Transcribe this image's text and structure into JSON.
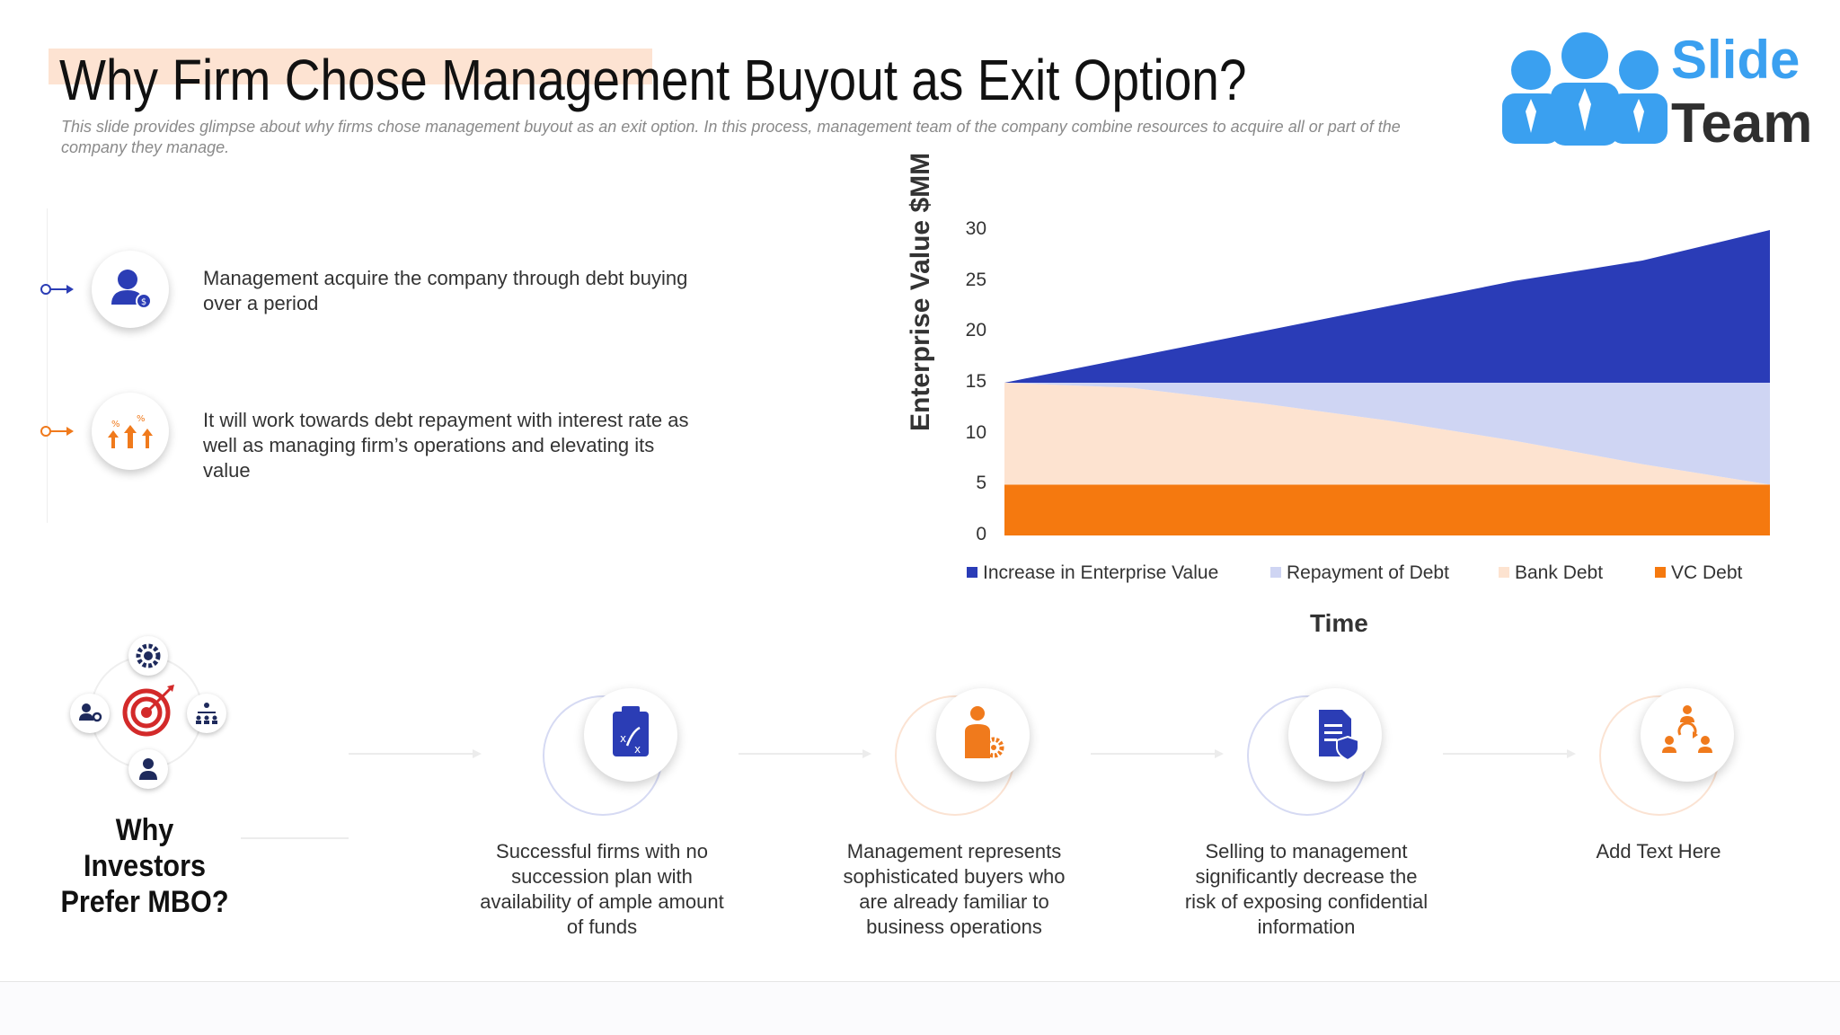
{
  "header": {
    "title": "Why Firm Chose Management Buyout as Exit Option?",
    "subtitle": "This slide provides glimpse about why firms chose management buyout as an exit option. In this process, management team of the company combine resources to acquire all or part of the company they manage."
  },
  "logo": {
    "line1": "Slide",
    "line2": "Team"
  },
  "points": [
    {
      "text": "Management acquire the company through debt buying over a period",
      "icon": "user-dollar-icon",
      "accent": "#2b3db5"
    },
    {
      "text": "It will work towards debt repayment with interest rate as well as managing firm’s operations and elevating its value",
      "icon": "growth-arrows-icon",
      "accent": "#f07a1c"
    }
  ],
  "chart_data": {
    "type": "area",
    "stacked": true,
    "xlabel": "Time",
    "ylabel": "Enterprise Value $MM",
    "ylim": [
      0,
      30
    ],
    "yticks": [
      0,
      5,
      10,
      15,
      20,
      25,
      30
    ],
    "x": [
      0,
      1,
      2,
      3,
      4,
      5,
      6
    ],
    "series": [
      {
        "name": "VC Debt",
        "color": "#f5790f",
        "values": [
          5,
          5,
          5,
          5,
          5,
          5,
          5
        ]
      },
      {
        "name": "Bank Debt",
        "color": "#fde3d0",
        "values": [
          10,
          9.5,
          8,
          6.3,
          4.3,
          2,
          0
        ]
      },
      {
        "name": "Repayment of Debt",
        "color": "#cfd5f3",
        "values": [
          0,
          0.5,
          2,
          3.7,
          5.7,
          8,
          10
        ]
      },
      {
        "name": "Increase in Enterprise Value",
        "color": "#2a3cb7",
        "values": [
          0,
          2.5,
          5,
          7.5,
          10,
          12,
          15
        ]
      }
    ],
    "legend_order": [
      "Increase in Enterprise Value",
      "Repayment of Debt",
      "Bank Debt",
      "VC Debt"
    ],
    "legend_position": "bottom"
  },
  "mbo": {
    "title": "Why Investors Prefer MBO?",
    "steps": [
      {
        "text": "Successful firms with no succession plan with availability of ample amount of funds",
        "icon": "clipboard-strategy-icon",
        "color": "#2b3db5"
      },
      {
        "text": "Management represents sophisticated buyers who are already familiar to business operations",
        "icon": "businessman-gear-icon",
        "color": "#f07a1c"
      },
      {
        "text": "Selling to management significantly decrease the risk of exposing confidential information",
        "icon": "secure-document-icon",
        "color": "#2b3db5"
      },
      {
        "text": "Add Text Here",
        "icon": "team-cycle-icon",
        "color": "#f07a1c"
      }
    ]
  }
}
